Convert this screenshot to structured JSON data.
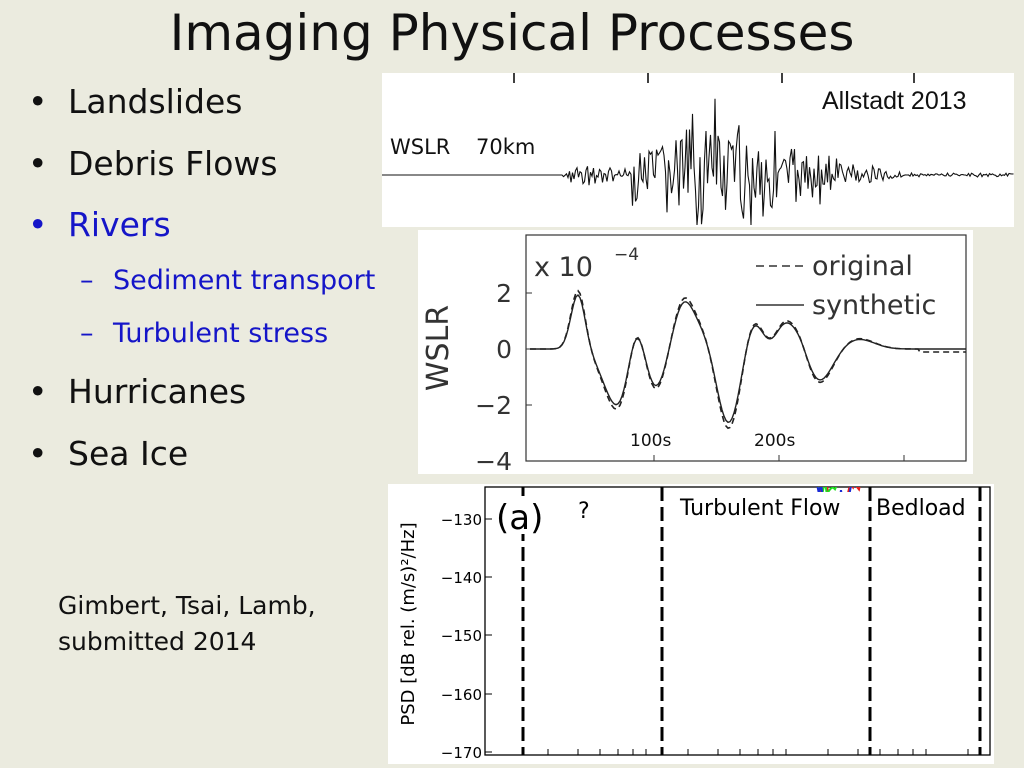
{
  "slide": {
    "title": "Imaging Physical Processes",
    "bullets": [
      {
        "text": "Landslides"
      },
      {
        "text": "Debris Flows"
      },
      {
        "text": "Rivers"
      },
      {
        "text": "Hurricanes"
      },
      {
        "text": "Sea Ice"
      }
    ],
    "sub_bullets": [
      {
        "text": "Sediment transport"
      },
      {
        "text": "Turbulent stress"
      }
    ],
    "bullet_glyph": "•",
    "sub_glyph": "–",
    "credit_line1": "Gimbert, Tsai, Lamb,",
    "credit_line2": "submitted 2014",
    "colors": {
      "background": "#ebebdf",
      "text": "#111111",
      "highlight": "#1515c8"
    }
  },
  "figure_top": {
    "citation": "Allstadt 2013",
    "station": "WSLR",
    "distance": "70km"
  },
  "figure_middle": {
    "ylabel": "WSLR",
    "scale_label": "x 10",
    "scale_exp": "−4",
    "legend": [
      "original",
      "synthetic"
    ],
    "yticks": [
      "2",
      "0",
      "−2",
      "−4"
    ],
    "annotations": [
      "100s",
      "200s"
    ]
  },
  "figure_bottom": {
    "panel_label": "(a)",
    "question": "?",
    "regime_labels": [
      "Turbulent Flow",
      "Bedload"
    ],
    "ylabel": "PSD [dB rel. (m/s)²/Hz]",
    "yticks": [
      "−130",
      "−140",
      "−150",
      "−160",
      "−170"
    ],
    "colors": {
      "red": "#e8201c",
      "green": "#1fe01f",
      "blue": "#1a2bd6",
      "black": "#000000"
    }
  }
}
